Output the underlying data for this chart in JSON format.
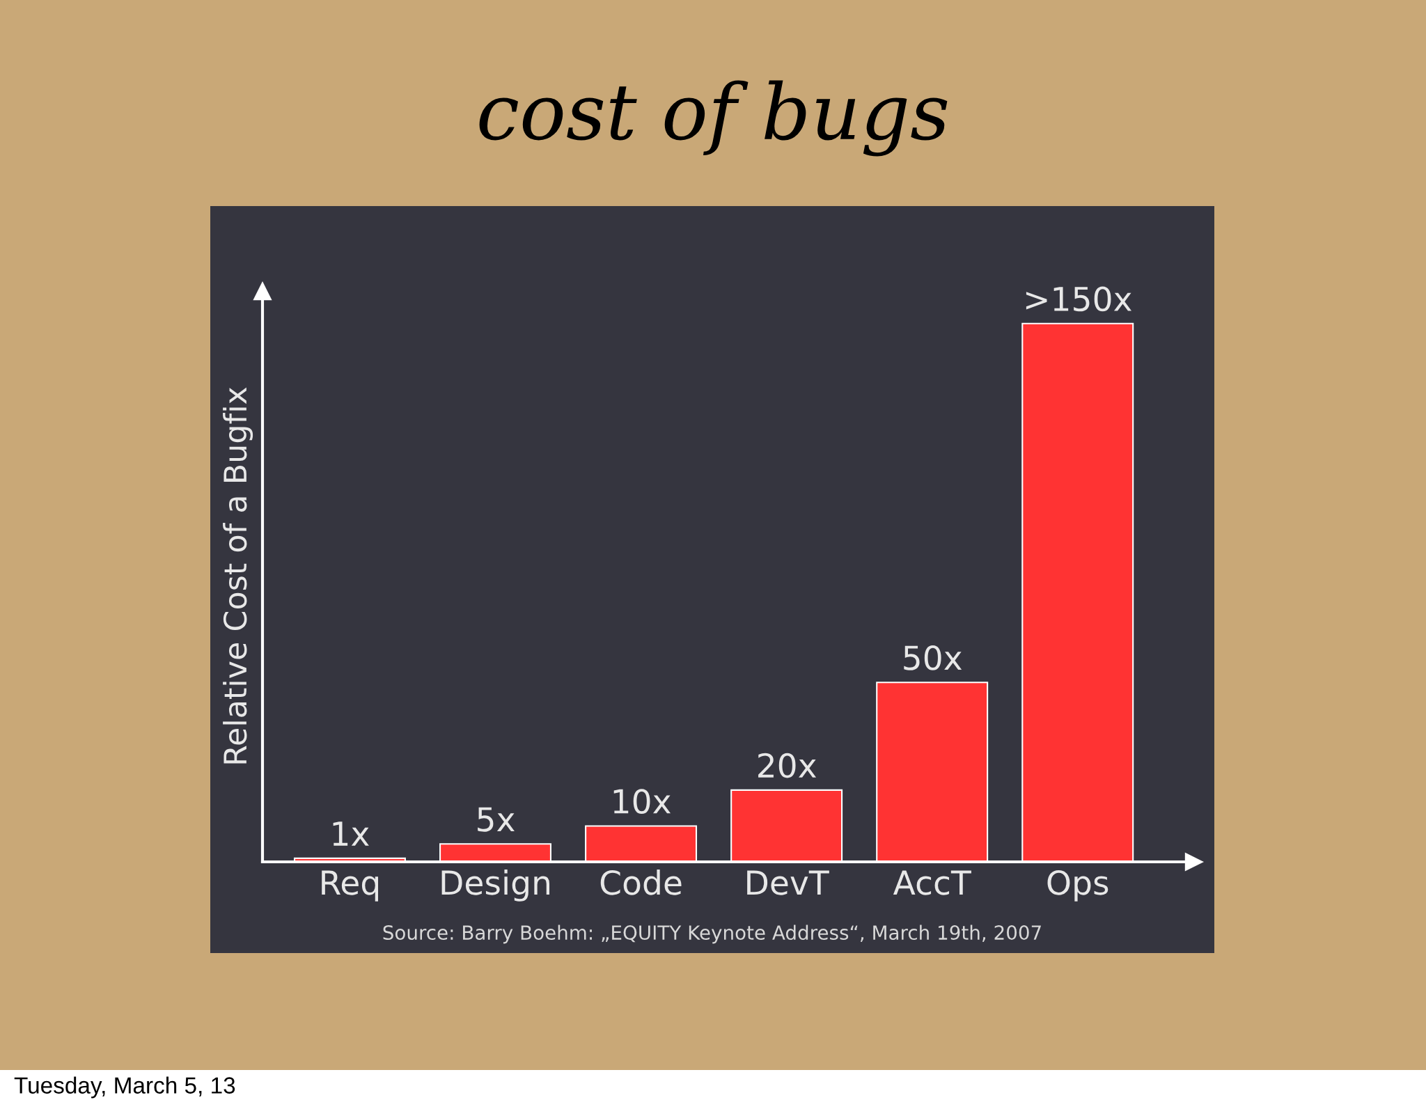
{
  "chart_data": {
    "type": "bar",
    "title": "cost of bugs",
    "ylabel": "Relative Cost of a Bugfix",
    "categories": [
      "Req",
      "Design",
      "Code",
      "DevT",
      "AccT",
      "Ops"
    ],
    "values": [
      1,
      5,
      10,
      20,
      50,
      150
    ],
    "value_labels": [
      "1x",
      "5x",
      "10x",
      "20x",
      "50x",
      ">150x"
    ],
    "color": "#ff3333",
    "annotations": [
      "Source: Barry Boehm: „EQUITY Keynote Address“, March 19th, 2007",
      "Tuesday, March 5, 13"
    ]
  }
}
